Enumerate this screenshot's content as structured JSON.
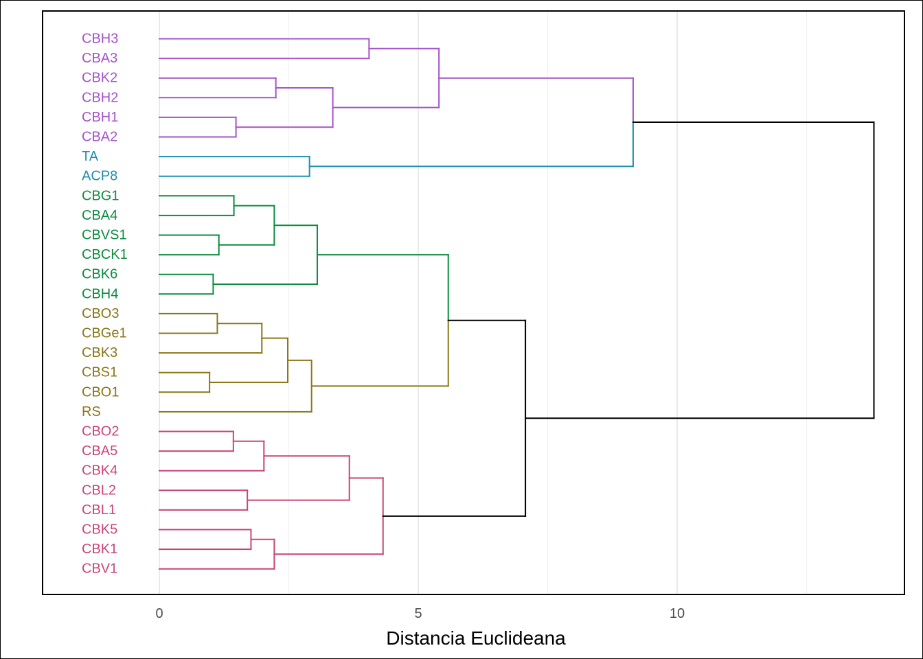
{
  "chart_data": {
    "type": "dendrogram",
    "orientation": "horizontal",
    "xlabel": "Distancia Euclideana",
    "xlim": [
      -2.25,
      14.0
    ],
    "xticks": [
      0,
      5,
      10
    ],
    "xtick_labels": [
      "0",
      "5",
      "10"
    ],
    "grid": true,
    "colors": {
      "purple": "#A652C9",
      "teal": "#1B8FB1",
      "green": "#0C8C3F",
      "olive": "#8A7717",
      "pink": "#C94479",
      "root": "#000000"
    },
    "leaves": [
      {
        "label": "CBH3",
        "color": "purple"
      },
      {
        "label": "CBA3",
        "color": "purple"
      },
      {
        "label": "CBK2",
        "color": "purple"
      },
      {
        "label": "CBH2",
        "color": "purple"
      },
      {
        "label": "CBH1",
        "color": "purple"
      },
      {
        "label": "CBA2",
        "color": "purple"
      },
      {
        "label": "TA",
        "color": "teal"
      },
      {
        "label": "ACP8",
        "color": "teal"
      },
      {
        "label": "CBG1",
        "color": "green"
      },
      {
        "label": "CBA4",
        "color": "green"
      },
      {
        "label": "CBVS1",
        "color": "green"
      },
      {
        "label": "CBCK1",
        "color": "green"
      },
      {
        "label": "CBK6",
        "color": "green"
      },
      {
        "label": "CBH4",
        "color": "green"
      },
      {
        "label": "CBO3",
        "color": "olive"
      },
      {
        "label": "CBGe1",
        "color": "olive"
      },
      {
        "label": "CBK3",
        "color": "olive"
      },
      {
        "label": "CBS1",
        "color": "olive"
      },
      {
        "label": "CBO1",
        "color": "olive"
      },
      {
        "label": "RS",
        "color": "olive"
      },
      {
        "label": "CBO2",
        "color": "pink"
      },
      {
        "label": "CBA5",
        "color": "pink"
      },
      {
        "label": "CBK4",
        "color": "pink"
      },
      {
        "label": "CBL2",
        "color": "pink"
      },
      {
        "label": "CBL1",
        "color": "pink"
      },
      {
        "label": "CBK5",
        "color": "pink"
      },
      {
        "label": "CBK1",
        "color": "pink"
      },
      {
        "label": "CBV1",
        "color": "pink"
      }
    ],
    "merges": [
      {
        "id": "m1",
        "a": "CBH3",
        "b": "CBA3",
        "height": 4.05,
        "color": "purple"
      },
      {
        "id": "m2",
        "a": "CBK2",
        "b": "CBH2",
        "height": 2.25,
        "color": "purple"
      },
      {
        "id": "m3",
        "a": "CBH1",
        "b": "CBA2",
        "height": 1.48,
        "color": "purple"
      },
      {
        "id": "m4",
        "a": "m2",
        "b": "m3",
        "height": 3.35,
        "color": "purple"
      },
      {
        "id": "m5",
        "a": "m1",
        "b": "m4",
        "height": 5.4,
        "color": "purple"
      },
      {
        "id": "m6",
        "a": "TA",
        "b": "ACP8",
        "height": 2.9,
        "color": "teal"
      },
      {
        "id": "m7",
        "a": "m5",
        "b": "m6",
        "height": 9.15,
        "color": "purple-teal"
      },
      {
        "id": "m8",
        "a": "CBG1",
        "b": "CBA4",
        "height": 1.44,
        "color": "green"
      },
      {
        "id": "m9",
        "a": "CBVS1",
        "b": "CBCK1",
        "height": 1.15,
        "color": "green"
      },
      {
        "id": "m10",
        "a": "m8",
        "b": "m9",
        "height": 2.22,
        "color": "green"
      },
      {
        "id": "m11",
        "a": "CBK6",
        "b": "CBH4",
        "height": 1.04,
        "color": "green"
      },
      {
        "id": "m12",
        "a": "m10",
        "b": "m11",
        "height": 3.05,
        "color": "green"
      },
      {
        "id": "m13",
        "a": "CBO3",
        "b": "CBGe1",
        "height": 1.12,
        "color": "olive"
      },
      {
        "id": "m14",
        "a": "m13",
        "b": "CBK3",
        "height": 1.98,
        "color": "olive"
      },
      {
        "id": "m15",
        "a": "CBS1",
        "b": "CBO1",
        "height": 0.97,
        "color": "olive"
      },
      {
        "id": "m16",
        "a": "m14",
        "b": "m15",
        "height": 2.48,
        "color": "olive"
      },
      {
        "id": "m17",
        "a": "m16",
        "b": "RS",
        "height": 2.94,
        "color": "olive"
      },
      {
        "id": "m18",
        "a": "m12",
        "b": "m17",
        "height": 5.58,
        "color": "green-olive"
      },
      {
        "id": "m19",
        "a": "CBO2",
        "b": "CBA5",
        "height": 1.43,
        "color": "pink"
      },
      {
        "id": "m20",
        "a": "m19",
        "b": "CBK4",
        "height": 2.02,
        "color": "pink"
      },
      {
        "id": "m21",
        "a": "CBL2",
        "b": "CBL1",
        "height": 1.7,
        "color": "pink"
      },
      {
        "id": "m22",
        "a": "m20",
        "b": "m21",
        "height": 3.67,
        "color": "pink"
      },
      {
        "id": "m23",
        "a": "CBK5",
        "b": "CBK1",
        "height": 1.77,
        "color": "pink"
      },
      {
        "id": "m24",
        "a": "m23",
        "b": "CBV1",
        "height": 2.22,
        "color": "pink"
      },
      {
        "id": "m25",
        "a": "m22",
        "b": "m24",
        "height": 4.32,
        "color": "pink"
      },
      {
        "id": "m26",
        "a": "m18",
        "b": "m25",
        "height": 7.07,
        "color": "root"
      },
      {
        "id": "m27",
        "a": "m7",
        "b": "m26",
        "height": 13.8,
        "color": "root"
      }
    ]
  }
}
